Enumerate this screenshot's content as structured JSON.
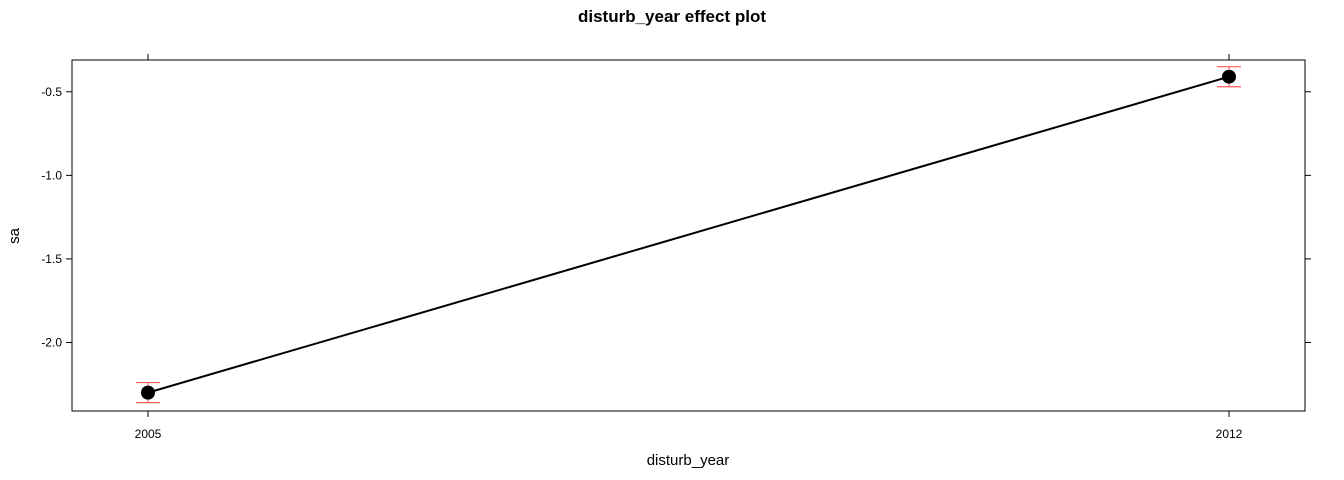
{
  "chart_data": {
    "type": "line",
    "title": "disturb_year effect plot",
    "xlabel": "disturb_year",
    "ylabel": "sa",
    "categories": [
      "2005",
      "2012"
    ],
    "series": [
      {
        "values": [
          -2.3,
          -0.41
        ],
        "lower": [
          -2.36,
          -0.47
        ],
        "upper": [
          -2.24,
          -0.35
        ]
      }
    ],
    "yticks": [
      -0.5,
      -1.0,
      -1.5,
      -2.0
    ],
    "ytick_labels": [
      "-0.5",
      "-1.0",
      "-1.5",
      "-2.0"
    ],
    "ylim": [
      -2.41,
      -0.31
    ],
    "grid": false,
    "legend": "none",
    "colors": {
      "line": "#000000",
      "point": "#000000",
      "errorbar": "#ff5a5a",
      "frame": "#000000"
    }
  }
}
